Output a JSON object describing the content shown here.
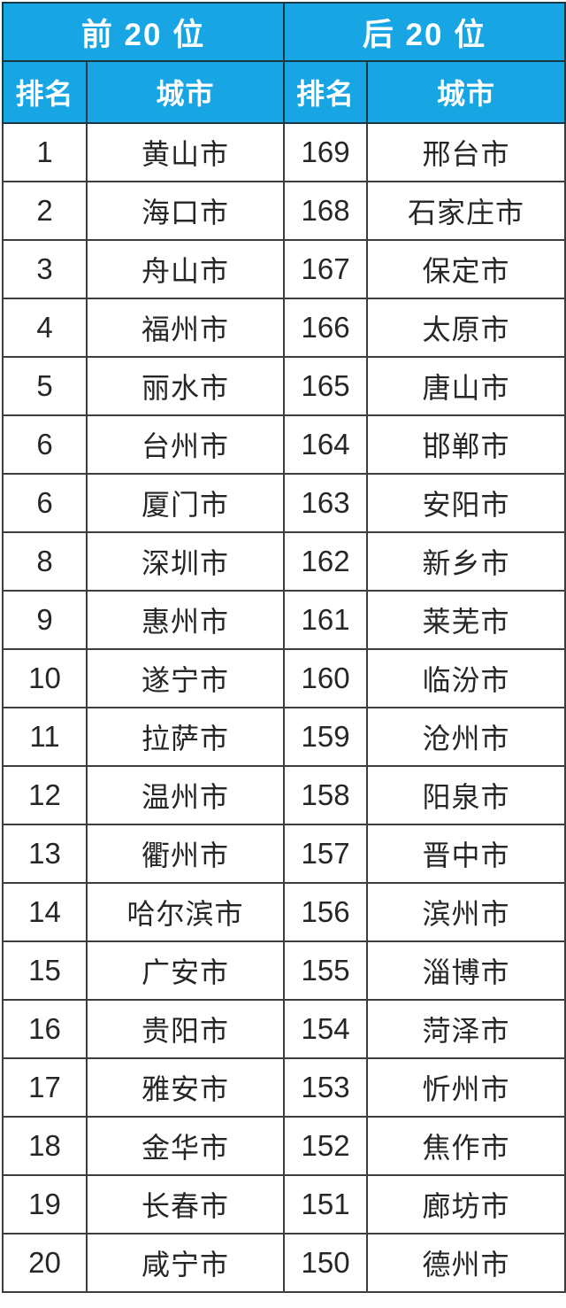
{
  "table": {
    "group_headers": [
      "前 20 位",
      "后 20 位"
    ],
    "column_headers": [
      "排名",
      "城市",
      "排名",
      "城市"
    ],
    "rows": [
      {
        "left_rank": "1",
        "left_city": "黄山市",
        "right_rank": "169",
        "right_city": "邢台市"
      },
      {
        "left_rank": "2",
        "left_city": "海口市",
        "right_rank": "168",
        "right_city": "石家庄市"
      },
      {
        "left_rank": "3",
        "left_city": "舟山市",
        "right_rank": "167",
        "right_city": "保定市"
      },
      {
        "left_rank": "4",
        "left_city": "福州市",
        "right_rank": "166",
        "right_city": "太原市"
      },
      {
        "left_rank": "5",
        "left_city": "丽水市",
        "right_rank": "165",
        "right_city": "唐山市"
      },
      {
        "left_rank": "6",
        "left_city": "台州市",
        "right_rank": "164",
        "right_city": "邯郸市"
      },
      {
        "left_rank": "6",
        "left_city": "厦门市",
        "right_rank": "163",
        "right_city": "安阳市"
      },
      {
        "left_rank": "8",
        "left_city": "深圳市",
        "right_rank": "162",
        "right_city": "新乡市"
      },
      {
        "left_rank": "9",
        "left_city": "惠州市",
        "right_rank": "161",
        "right_city": "莱芜市"
      },
      {
        "left_rank": "10",
        "left_city": "遂宁市",
        "right_rank": "160",
        "right_city": "临汾市"
      },
      {
        "left_rank": "11",
        "left_city": "拉萨市",
        "right_rank": "159",
        "right_city": "沧州市"
      },
      {
        "left_rank": "12",
        "left_city": "温州市",
        "right_rank": "158",
        "right_city": "阳泉市"
      },
      {
        "left_rank": "13",
        "left_city": "衢州市",
        "right_rank": "157",
        "right_city": "晋中市"
      },
      {
        "left_rank": "14",
        "left_city": "哈尔滨市",
        "right_rank": "156",
        "right_city": "滨州市"
      },
      {
        "left_rank": "15",
        "left_city": "广安市",
        "right_rank": "155",
        "right_city": "淄博市"
      },
      {
        "left_rank": "16",
        "left_city": "贵阳市",
        "right_rank": "154",
        "right_city": "菏泽市"
      },
      {
        "left_rank": "17",
        "left_city": "雅安市",
        "right_rank": "153",
        "right_city": "忻州市"
      },
      {
        "left_rank": "18",
        "left_city": "金华市",
        "right_rank": "152",
        "right_city": "焦作市"
      },
      {
        "left_rank": "19",
        "left_city": "长春市",
        "right_rank": "151",
        "right_city": "廊坊市"
      },
      {
        "left_rank": "20",
        "left_city": "咸宁市",
        "right_rank": "150",
        "right_city": "德州市"
      }
    ]
  },
  "colors": {
    "header_bg": "#17a6e3",
    "header_border": "#1b3945",
    "body_border": "#3d3d3d",
    "body_text": "#262626",
    "header_text": "#ffffff"
  }
}
